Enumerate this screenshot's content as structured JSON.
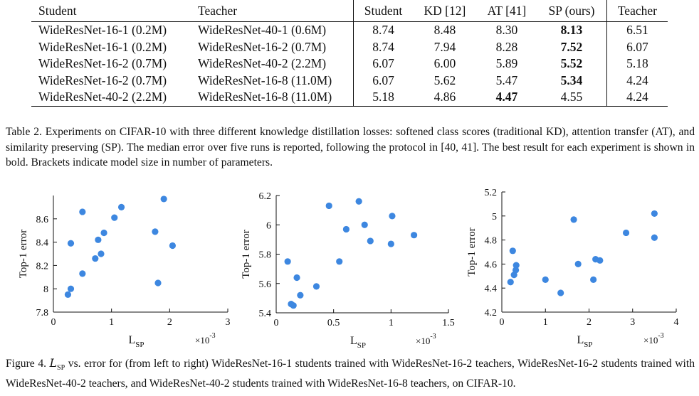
{
  "table": {
    "headers": [
      "Student",
      "Teacher",
      "Student",
      "KD [12]",
      "AT [41]",
      "SP (ours)",
      "Teacher"
    ],
    "rows": [
      [
        "WideResNet-16-1 (0.2M)",
        "WideResNet-40-1 (0.6M)",
        "8.74",
        "8.48",
        "8.30",
        "8.13",
        "6.51"
      ],
      [
        "WideResNet-16-1 (0.2M)",
        "WideResNet-16-2 (0.7M)",
        "8.74",
        "7.94",
        "8.28",
        "7.52",
        "6.07"
      ],
      [
        "WideResNet-16-2 (0.7M)",
        "WideResNet-40-2 (2.2M)",
        "6.07",
        "6.00",
        "5.89",
        "5.52",
        "5.18"
      ],
      [
        "WideResNet-16-2 (0.7M)",
        "WideResNet-16-8 (11.0M)",
        "6.07",
        "5.62",
        "5.47",
        "5.34",
        "4.24"
      ],
      [
        "WideResNet-40-2 (2.2M)",
        "WideResNet-16-8 (11.0M)",
        "5.18",
        "4.86",
        "4.47",
        "4.55",
        "4.24"
      ]
    ],
    "bold_cells": [
      [
        0,
        5
      ],
      [
        1,
        5
      ],
      [
        2,
        5
      ],
      [
        3,
        5
      ],
      [
        4,
        4
      ]
    ]
  },
  "table_caption": "Table 2. Experiments on CIFAR-10 with three different knowledge distillation losses: softened class scores (traditional KD), attention transfer (AT), and similarity preserving (SP). The median error over five runs is reported, following the protocol in [40, 41]. The best result for each experiment is shown in bold. Brackets indicate model size in number of parameters.",
  "figure_caption": {
    "prefix": "Figure 4. ",
    "symbol_main": "L",
    "symbol_sub": "SP",
    "rest": " vs.  error for (from left to right) WideResNet-16-1 students trained with WideResNet-16-2 teachers, WideResNet-16-2 students trained with WideResNet-40-2 teachers, and WideResNet-40-2 students trained with WideResNet-16-8 teachers, on CIFAR-10."
  },
  "colors": {
    "marker": "#3d87e0",
    "axis": "#111111"
  },
  "chart_data": [
    {
      "type": "scatter",
      "ylabel": "Top-1 error",
      "xlabel_main": "L",
      "xlabel_sub": "SP",
      "multiplier_label": "×10",
      "multiplier_exp": "-3",
      "xlim": [
        0,
        3
      ],
      "ylim": [
        7.8,
        8.8
      ],
      "xticks": [
        0,
        1,
        2,
        3
      ],
      "xtick_labels": [
        "0",
        "1",
        "2",
        "3"
      ],
      "yticks": [
        7.8,
        8.0,
        8.2,
        8.4,
        8.6
      ],
      "ytick_labels": [
        "7.8",
        "8",
        "8.2",
        "8.4",
        "8.6"
      ],
      "points": [
        {
          "x": 0.25,
          "y": 7.95
        },
        {
          "x": 0.3,
          "y": 8.0
        },
        {
          "x": 0.3,
          "y": 8.39
        },
        {
          "x": 0.5,
          "y": 8.13
        },
        {
          "x": 0.5,
          "y": 8.66
        },
        {
          "x": 0.72,
          "y": 8.26
        },
        {
          "x": 0.77,
          "y": 8.42
        },
        {
          "x": 0.82,
          "y": 8.3
        },
        {
          "x": 0.87,
          "y": 8.48
        },
        {
          "x": 1.05,
          "y": 8.61
        },
        {
          "x": 1.17,
          "y": 8.7
        },
        {
          "x": 1.75,
          "y": 8.49
        },
        {
          "x": 1.8,
          "y": 8.05
        },
        {
          "x": 1.9,
          "y": 8.77
        },
        {
          "x": 2.05,
          "y": 8.37
        }
      ]
    },
    {
      "type": "scatter",
      "ylabel": "Top-1 error",
      "xlabel_main": "L",
      "xlabel_sub": "SP",
      "multiplier_label": "×10",
      "multiplier_exp": "-3",
      "xlim": [
        0,
        1.5
      ],
      "ylim": [
        5.4,
        6.2
      ],
      "xticks": [
        0,
        0.5,
        1,
        1.5
      ],
      "xtick_labels": [
        "0",
        "0.5",
        "1",
        "1.5"
      ],
      "yticks": [
        5.4,
        5.6,
        5.8,
        6.0,
        6.2
      ],
      "ytick_labels": [
        "5.4",
        "5.6",
        "5.8",
        "6",
        "6.2"
      ],
      "points": [
        {
          "x": 0.1,
          "y": 5.75
        },
        {
          "x": 0.13,
          "y": 5.46
        },
        {
          "x": 0.15,
          "y": 5.45
        },
        {
          "x": 0.18,
          "y": 5.64
        },
        {
          "x": 0.21,
          "y": 5.52
        },
        {
          "x": 0.35,
          "y": 5.58
        },
        {
          "x": 0.46,
          "y": 6.13
        },
        {
          "x": 0.55,
          "y": 5.75
        },
        {
          "x": 0.61,
          "y": 5.97
        },
        {
          "x": 0.72,
          "y": 6.16
        },
        {
          "x": 0.77,
          "y": 6.0
        },
        {
          "x": 0.82,
          "y": 5.89
        },
        {
          "x": 1.0,
          "y": 5.87
        },
        {
          "x": 1.01,
          "y": 6.06
        },
        {
          "x": 1.2,
          "y": 5.93
        }
      ]
    },
    {
      "type": "scatter",
      "ylabel": "Top-1 error",
      "xlabel_main": "L",
      "xlabel_sub": "SP",
      "multiplier_label": "×10",
      "multiplier_exp": "-3",
      "xlim": [
        0,
        4
      ],
      "ylim": [
        4.2,
        5.2
      ],
      "xticks": [
        0,
        1,
        2,
        3,
        4
      ],
      "xtick_labels": [
        "0",
        "1",
        "2",
        "3",
        "4"
      ],
      "yticks": [
        4.2,
        4.4,
        4.6,
        4.8,
        5.0,
        5.2
      ],
      "ytick_labels": [
        "4.2",
        "4.4",
        "4.6",
        "4.8",
        "5",
        "5.2"
      ],
      "points": [
        {
          "x": 0.2,
          "y": 4.45
        },
        {
          "x": 0.25,
          "y": 4.71
        },
        {
          "x": 0.28,
          "y": 4.51
        },
        {
          "x": 0.32,
          "y": 4.55
        },
        {
          "x": 0.33,
          "y": 4.59
        },
        {
          "x": 1.0,
          "y": 4.47
        },
        {
          "x": 1.35,
          "y": 4.36
        },
        {
          "x": 1.65,
          "y": 4.97
        },
        {
          "x": 1.75,
          "y": 4.6
        },
        {
          "x": 2.1,
          "y": 4.47
        },
        {
          "x": 2.15,
          "y": 4.64
        },
        {
          "x": 2.25,
          "y": 4.63
        },
        {
          "x": 2.85,
          "y": 4.86
        },
        {
          "x": 3.5,
          "y": 4.82
        },
        {
          "x": 3.5,
          "y": 5.02
        }
      ]
    }
  ]
}
